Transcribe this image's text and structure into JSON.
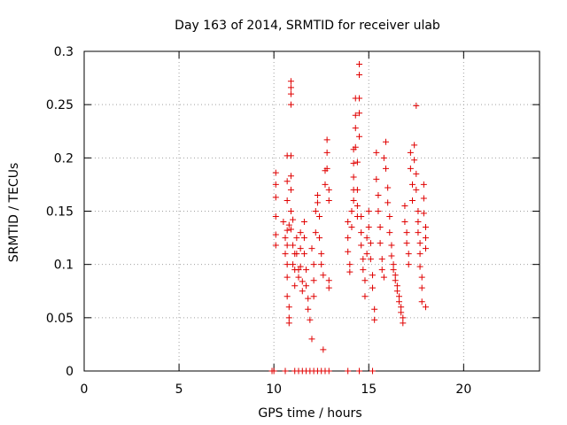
{
  "chart_data": {
    "type": "scatter",
    "title": "Day 163 of 2014, SRMTID for receiver ulab",
    "xlabel": "GPS time / hours",
    "ylabel": "SRMTID / TECUs",
    "xlim": [
      0,
      24
    ],
    "ylim": [
      0,
      0.3
    ],
    "xticks": [
      0,
      5,
      10,
      15,
      20
    ],
    "yticks": [
      0,
      0.05,
      0.1,
      0.15,
      0.2,
      0.25,
      0.3
    ],
    "grid": true,
    "marker": "+",
    "marker_color": "#e00000",
    "series": [
      {
        "name": "SRMTID",
        "points": [
          [
            9.9,
            0.0
          ],
          [
            10.0,
            0.0
          ],
          [
            10.6,
            0.0
          ],
          [
            11.1,
            0.0
          ],
          [
            11.3,
            0.0
          ],
          [
            11.5,
            0.0
          ],
          [
            11.7,
            0.0
          ],
          [
            11.9,
            0.0
          ],
          [
            12.1,
            0.0
          ],
          [
            12.3,
            0.0
          ],
          [
            12.5,
            0.0
          ],
          [
            12.7,
            0.0
          ],
          [
            12.9,
            0.0
          ],
          [
            13.9,
            0.0
          ],
          [
            14.5,
            0.0
          ],
          [
            15.2,
            0.0
          ],
          [
            10.1,
            0.186
          ],
          [
            10.1,
            0.175
          ],
          [
            10.1,
            0.163
          ],
          [
            10.1,
            0.145
          ],
          [
            10.1,
            0.128
          ],
          [
            10.1,
            0.118
          ],
          [
            10.5,
            0.14
          ],
          [
            10.6,
            0.125
          ],
          [
            10.6,
            0.11
          ],
          [
            10.7,
            0.202
          ],
          [
            10.7,
            0.178
          ],
          [
            10.7,
            0.16
          ],
          [
            10.7,
            0.132
          ],
          [
            10.7,
            0.118
          ],
          [
            10.7,
            0.1
          ],
          [
            10.7,
            0.088
          ],
          [
            10.7,
            0.07
          ],
          [
            10.8,
            0.06
          ],
          [
            10.8,
            0.05
          ],
          [
            10.8,
            0.045
          ],
          [
            10.8,
            0.137
          ],
          [
            10.9,
            0.272
          ],
          [
            10.9,
            0.266
          ],
          [
            10.9,
            0.26
          ],
          [
            10.9,
            0.25
          ],
          [
            10.9,
            0.202
          ],
          [
            10.9,
            0.183
          ],
          [
            10.9,
            0.17
          ],
          [
            10.9,
            0.15
          ],
          [
            10.9,
            0.133
          ],
          [
            11.0,
            0.142
          ],
          [
            11.0,
            0.118
          ],
          [
            11.0,
            0.1
          ],
          [
            11.1,
            0.11
          ],
          [
            11.1,
            0.095
          ],
          [
            11.1,
            0.08
          ],
          [
            11.2,
            0.125
          ],
          [
            11.2,
            0.11
          ],
          [
            11.3,
            0.095
          ],
          [
            11.3,
            0.088
          ],
          [
            11.4,
            0.13
          ],
          [
            11.4,
            0.115
          ],
          [
            11.4,
            0.098
          ],
          [
            11.5,
            0.084
          ],
          [
            11.5,
            0.075
          ],
          [
            11.6,
            0.14
          ],
          [
            11.6,
            0.125
          ],
          [
            11.6,
            0.11
          ],
          [
            11.7,
            0.095
          ],
          [
            11.7,
            0.08
          ],
          [
            11.8,
            0.068
          ],
          [
            11.8,
            0.058
          ],
          [
            11.9,
            0.048
          ],
          [
            12.0,
            0.03
          ],
          [
            12.0,
            0.115
          ],
          [
            12.1,
            0.1
          ],
          [
            12.1,
            0.085
          ],
          [
            12.1,
            0.07
          ],
          [
            12.2,
            0.13
          ],
          [
            12.2,
            0.15
          ],
          [
            12.3,
            0.165
          ],
          [
            12.3,
            0.158
          ],
          [
            12.4,
            0.145
          ],
          [
            12.4,
            0.125
          ],
          [
            12.5,
            0.11
          ],
          [
            12.5,
            0.1
          ],
          [
            12.6,
            0.09
          ],
          [
            12.6,
            0.02
          ],
          [
            12.7,
            0.188
          ],
          [
            12.7,
            0.175
          ],
          [
            12.8,
            0.217
          ],
          [
            12.8,
            0.205
          ],
          [
            12.8,
            0.19
          ],
          [
            12.9,
            0.17
          ],
          [
            12.9,
            0.16
          ],
          [
            12.9,
            0.085
          ],
          [
            12.9,
            0.078
          ],
          [
            13.9,
            0.14
          ],
          [
            13.9,
            0.125
          ],
          [
            13.9,
            0.112
          ],
          [
            14.0,
            0.1
          ],
          [
            14.0,
            0.093
          ],
          [
            14.1,
            0.15
          ],
          [
            14.1,
            0.135
          ],
          [
            14.2,
            0.208
          ],
          [
            14.2,
            0.195
          ],
          [
            14.2,
            0.182
          ],
          [
            14.2,
            0.17
          ],
          [
            14.2,
            0.16
          ],
          [
            14.3,
            0.256
          ],
          [
            14.3,
            0.24
          ],
          [
            14.3,
            0.228
          ],
          [
            14.3,
            0.21
          ],
          [
            14.4,
            0.196
          ],
          [
            14.4,
            0.17
          ],
          [
            14.4,
            0.155
          ],
          [
            14.4,
            0.145
          ],
          [
            14.5,
            0.288
          ],
          [
            14.5,
            0.278
          ],
          [
            14.5,
            0.256
          ],
          [
            14.5,
            0.242
          ],
          [
            14.5,
            0.22
          ],
          [
            14.6,
            0.145
          ],
          [
            14.6,
            0.13
          ],
          [
            14.6,
            0.118
          ],
          [
            14.7,
            0.105
          ],
          [
            14.7,
            0.095
          ],
          [
            14.8,
            0.085
          ],
          [
            14.8,
            0.07
          ],
          [
            14.9,
            0.11
          ],
          [
            14.9,
            0.125
          ],
          [
            15.0,
            0.15
          ],
          [
            15.0,
            0.135
          ],
          [
            15.1,
            0.12
          ],
          [
            15.1,
            0.105
          ],
          [
            15.2,
            0.09
          ],
          [
            15.2,
            0.078
          ],
          [
            15.3,
            0.058
          ],
          [
            15.3,
            0.048
          ],
          [
            15.4,
            0.205
          ],
          [
            15.4,
            0.18
          ],
          [
            15.5,
            0.165
          ],
          [
            15.5,
            0.15
          ],
          [
            15.6,
            0.135
          ],
          [
            15.6,
            0.12
          ],
          [
            15.7,
            0.105
          ],
          [
            15.7,
            0.095
          ],
          [
            15.8,
            0.088
          ],
          [
            15.8,
            0.2
          ],
          [
            15.9,
            0.215
          ],
          [
            15.9,
            0.19
          ],
          [
            16.0,
            0.172
          ],
          [
            16.0,
            0.158
          ],
          [
            16.1,
            0.145
          ],
          [
            16.1,
            0.13
          ],
          [
            16.2,
            0.118
          ],
          [
            16.2,
            0.108
          ],
          [
            16.3,
            0.1
          ],
          [
            16.3,
            0.095
          ],
          [
            16.4,
            0.09
          ],
          [
            16.4,
            0.085
          ],
          [
            16.5,
            0.08
          ],
          [
            16.5,
            0.075
          ],
          [
            16.6,
            0.07
          ],
          [
            16.6,
            0.065
          ],
          [
            16.7,
            0.06
          ],
          [
            16.7,
            0.055
          ],
          [
            16.8,
            0.05
          ],
          [
            16.8,
            0.045
          ],
          [
            16.9,
            0.155
          ],
          [
            16.9,
            0.14
          ],
          [
            17.0,
            0.13
          ],
          [
            17.0,
            0.12
          ],
          [
            17.1,
            0.11
          ],
          [
            17.1,
            0.1
          ],
          [
            17.2,
            0.205
          ],
          [
            17.2,
            0.19
          ],
          [
            17.3,
            0.175
          ],
          [
            17.3,
            0.16
          ],
          [
            17.4,
            0.212
          ],
          [
            17.4,
            0.198
          ],
          [
            17.5,
            0.185
          ],
          [
            17.5,
            0.17
          ],
          [
            17.5,
            0.249
          ],
          [
            17.6,
            0.15
          ],
          [
            17.6,
            0.14
          ],
          [
            17.6,
            0.13
          ],
          [
            17.7,
            0.12
          ],
          [
            17.7,
            0.11
          ],
          [
            17.7,
            0.098
          ],
          [
            17.8,
            0.088
          ],
          [
            17.8,
            0.078
          ],
          [
            17.8,
            0.065
          ],
          [
            17.9,
            0.175
          ],
          [
            17.9,
            0.162
          ],
          [
            17.9,
            0.148
          ],
          [
            18.0,
            0.135
          ],
          [
            18.0,
            0.125
          ],
          [
            18.0,
            0.115
          ],
          [
            18.0,
            0.06
          ]
        ]
      }
    ]
  }
}
